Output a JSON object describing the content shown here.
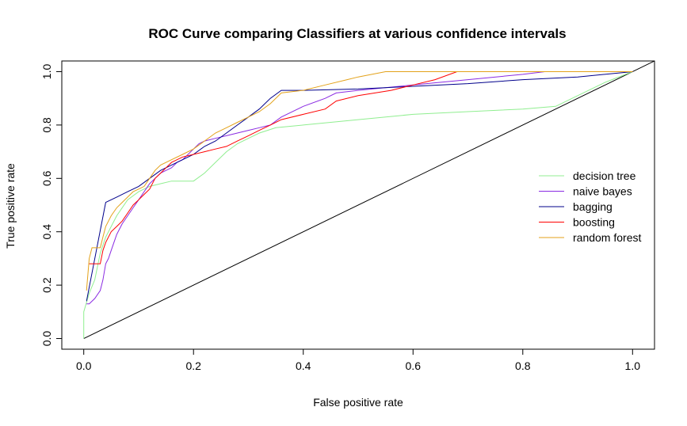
{
  "chart_data": {
    "type": "line",
    "title": "ROC Curve comparing Classifiers at various confidence intervals",
    "xlabel": "False positive rate",
    "ylabel": "True positive rate",
    "xlim": [
      -0.04,
      1.04
    ],
    "ylim": [
      -0.04,
      1.04
    ],
    "x_ticks": [
      "0.0",
      "0.2",
      "0.4",
      "0.6",
      "0.8",
      "1.0"
    ],
    "y_ticks": [
      "0.0",
      "0.2",
      "0.4",
      "0.6",
      "0.8",
      "1.0"
    ],
    "grid": false,
    "legend_position": "right",
    "diagonal": {
      "x": [
        0,
        1.04
      ],
      "y": [
        0,
        1.04
      ],
      "color": "#000000"
    },
    "series": [
      {
        "name": "decision tree",
        "color": "#90EE90",
        "x": [
          0,
          0,
          0.01,
          0.02,
          0.03,
          0.04,
          0.06,
          0.08,
          0.1,
          0.12,
          0.14,
          0.16,
          0.18,
          0.2,
          0.22,
          0.24,
          0.26,
          0.28,
          0.3,
          0.32,
          0.35,
          0.4,
          0.5,
          0.6,
          0.7,
          0.8,
          0.86,
          0.9,
          0.95,
          1.0
        ],
        "y": [
          0.0,
          0.1,
          0.17,
          0.22,
          0.32,
          0.38,
          0.46,
          0.52,
          0.55,
          0.57,
          0.58,
          0.59,
          0.59,
          0.59,
          0.62,
          0.66,
          0.7,
          0.73,
          0.75,
          0.77,
          0.79,
          0.8,
          0.82,
          0.84,
          0.85,
          0.86,
          0.87,
          0.91,
          0.96,
          1.0
        ]
      },
      {
        "name": "naive bayes",
        "color": "#8A2BE2",
        "x": [
          0.005,
          0.01,
          0.02,
          0.03,
          0.035,
          0.04,
          0.045,
          0.05,
          0.055,
          0.06,
          0.07,
          0.08,
          0.09,
          0.1,
          0.11,
          0.12,
          0.13,
          0.14,
          0.15,
          0.16,
          0.17,
          0.18,
          0.19,
          0.2,
          0.21,
          0.22,
          0.24,
          0.26,
          0.28,
          0.3,
          0.32,
          0.34,
          0.36,
          0.4,
          0.44,
          0.46,
          0.5,
          0.6,
          0.7,
          0.8,
          0.84,
          1.0
        ],
        "y": [
          0.13,
          0.13,
          0.15,
          0.18,
          0.22,
          0.28,
          0.3,
          0.33,
          0.36,
          0.39,
          0.43,
          0.46,
          0.49,
          0.52,
          0.55,
          0.58,
          0.6,
          0.62,
          0.63,
          0.64,
          0.66,
          0.67,
          0.69,
          0.71,
          0.73,
          0.74,
          0.75,
          0.76,
          0.77,
          0.78,
          0.79,
          0.8,
          0.83,
          0.87,
          0.9,
          0.92,
          0.93,
          0.95,
          0.97,
          0.99,
          1.0,
          1.0
        ]
      },
      {
        "name": "bagging",
        "color": "#00008B",
        "x": [
          0.005,
          0.04,
          0.06,
          0.08,
          0.1,
          0.12,
          0.14,
          0.16,
          0.18,
          0.2,
          0.22,
          0.24,
          0.26,
          0.28,
          0.3,
          0.32,
          0.34,
          0.36,
          0.4,
          0.5,
          0.6,
          0.7,
          0.8,
          0.9,
          1.0
        ],
        "y": [
          0.14,
          0.51,
          0.53,
          0.55,
          0.57,
          0.6,
          0.63,
          0.65,
          0.67,
          0.69,
          0.72,
          0.74,
          0.77,
          0.8,
          0.83,
          0.86,
          0.9,
          0.93,
          0.93,
          0.935,
          0.945,
          0.955,
          0.97,
          0.98,
          1.0
        ]
      },
      {
        "name": "boosting",
        "color": "#FF0000",
        "x": [
          0.01,
          0.01,
          0.03,
          0.035,
          0.04,
          0.05,
          0.06,
          0.07,
          0.08,
          0.09,
          0.1,
          0.11,
          0.12,
          0.13,
          0.14,
          0.15,
          0.16,
          0.18,
          0.2,
          0.22,
          0.24,
          0.26,
          0.28,
          0.3,
          0.32,
          0.34,
          0.36,
          0.4,
          0.44,
          0.46,
          0.5,
          0.56,
          0.6,
          0.64,
          0.68,
          1.0
        ],
        "y": [
          0.28,
          0.28,
          0.28,
          0.33,
          0.36,
          0.4,
          0.42,
          0.44,
          0.47,
          0.5,
          0.52,
          0.54,
          0.56,
          0.6,
          0.62,
          0.64,
          0.66,
          0.68,
          0.69,
          0.7,
          0.71,
          0.72,
          0.74,
          0.76,
          0.78,
          0.8,
          0.82,
          0.84,
          0.86,
          0.89,
          0.91,
          0.93,
          0.95,
          0.97,
          1.0,
          1.0
        ]
      },
      {
        "name": "random forest",
        "color": "#E3A21A",
        "x": [
          0.005,
          0.01,
          0.015,
          0.03,
          0.035,
          0.04,
          0.045,
          0.05,
          0.06,
          0.07,
          0.08,
          0.09,
          0.1,
          0.11,
          0.12,
          0.13,
          0.14,
          0.15,
          0.16,
          0.18,
          0.2,
          0.22,
          0.24,
          0.26,
          0.28,
          0.3,
          0.32,
          0.34,
          0.36,
          0.4,
          0.44,
          0.48,
          0.5,
          0.55,
          0.6,
          0.7,
          0.8,
          0.9,
          1.0
        ],
        "y": [
          0.18,
          0.3,
          0.34,
          0.34,
          0.38,
          0.42,
          0.44,
          0.46,
          0.49,
          0.51,
          0.53,
          0.55,
          0.56,
          0.57,
          0.6,
          0.63,
          0.65,
          0.66,
          0.67,
          0.69,
          0.71,
          0.74,
          0.77,
          0.79,
          0.81,
          0.83,
          0.85,
          0.88,
          0.92,
          0.93,
          0.95,
          0.97,
          0.98,
          1.0,
          1.0,
          1.0,
          1.0,
          1.0,
          1.0
        ]
      }
    ]
  }
}
